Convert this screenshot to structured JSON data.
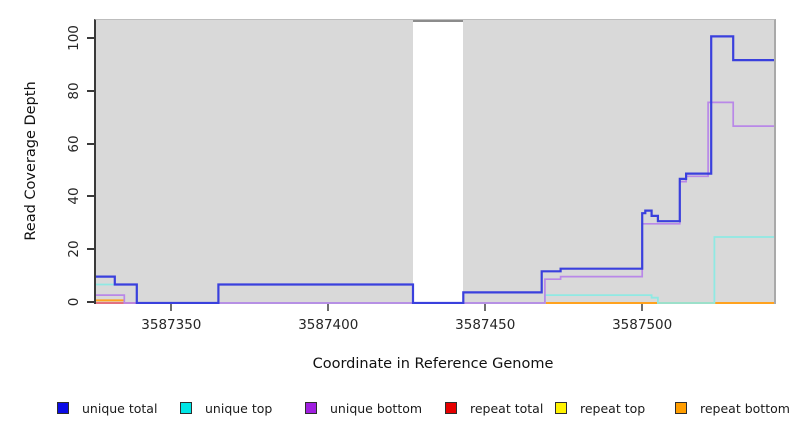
{
  "y_axis": {
    "label": "Read Coverage Depth",
    "ticks": [
      "0",
      "20",
      "40",
      "60",
      "80",
      "100"
    ],
    "tick_values": [
      0,
      20,
      40,
      60,
      80,
      100
    ]
  },
  "x_axis": {
    "label": "Coordinate in Reference Genome",
    "ticks": [
      "3587350",
      "3587400",
      "3587450",
      "3587500"
    ],
    "tick_values": [
      3587350,
      3587400,
      3587450,
      3587500
    ]
  },
  "legend": [
    {
      "label": "unique total",
      "color": "#0b0be6"
    },
    {
      "label": "unique top",
      "color": "#00e5e5"
    },
    {
      "label": "unique bottom",
      "color": "#a01fe0"
    },
    {
      "label": "repeat total",
      "color": "#e60000"
    },
    {
      "label": "repeat top",
      "color": "#fff200"
    },
    {
      "label": "repeat bottom",
      "color": "#ff9d00"
    }
  ],
  "chart_data": {
    "type": "line",
    "subtype": "step-coverage",
    "title": "",
    "xlabel": "Coordinate in Reference Genome",
    "ylabel": "Read Coverage Depth",
    "xlim": [
      3587326,
      3587542
    ],
    "ylim": [
      0,
      107
    ],
    "grid": false,
    "plot_background": "#d9d9d9",
    "masked_region": {
      "x_start": 3587427,
      "x_end": 3587443,
      "color": "#ffffff"
    },
    "series": [
      {
        "name": "repeat top",
        "color": "#ffe82e",
        "line_width": 1.6,
        "segments": [
          [
            [
              3587326,
              0
            ],
            [
              3587542,
              0
            ]
          ]
        ]
      },
      {
        "name": "repeat total",
        "color": "#e0607f",
        "line_width": 1.7,
        "segments": [
          [
            [
              3587326,
              0
            ],
            [
              3587542,
              0
            ]
          ]
        ]
      },
      {
        "name": "repeat bottom",
        "color": "#ffa21f",
        "line_width": 2,
        "segments": [
          [
            [
              3587326,
              1
            ],
            [
              3587335,
              1
            ]
          ],
          [
            [
              3587469,
              0
            ],
            [
              3587542,
              0
            ]
          ]
        ]
      },
      {
        "name": "unique top",
        "color": "#8fe9e3",
        "line_width": 1.8,
        "segments": [
          [
            [
              3587326,
              7
            ],
            [
              3587339,
              0
            ],
            [
              3587469,
              3
            ],
            [
              3587503,
              2
            ],
            [
              3587505,
              0
            ],
            [
              3587523,
              25
            ],
            [
              3587542,
              25
            ]
          ]
        ]
      },
      {
        "name": "unique bottom",
        "color": "#b988e8",
        "line_width": 1.7,
        "segments": [
          [
            [
              3587326,
              3
            ],
            [
              3587335,
              0
            ],
            [
              3587469,
              9
            ],
            [
              3587474,
              10
            ],
            [
              3587500,
              30
            ],
            [
              3587512,
              46
            ],
            [
              3587514,
              48
            ],
            [
              3587521,
              76
            ],
            [
              3587529,
              67
            ],
            [
              3587542,
              67
            ]
          ]
        ]
      },
      {
        "name": "unique total",
        "color": "#3a40dd",
        "line_width": 2.2,
        "segments": [
          [
            [
              3587326,
              10
            ],
            [
              3587332,
              7
            ],
            [
              3587339,
              0
            ],
            [
              3587365,
              7
            ],
            [
              3587427,
              0
            ],
            [
              3587443,
              4
            ],
            [
              3587468,
              12
            ],
            [
              3587474,
              13
            ],
            [
              3587500,
              34
            ],
            [
              3587501,
              35
            ],
            [
              3587503,
              33
            ],
            [
              3587505,
              31
            ],
            [
              3587512,
              47
            ],
            [
              3587514,
              49
            ],
            [
              3587522,
              101
            ],
            [
              3587529,
              92
            ],
            [
              3587542,
              92
            ]
          ]
        ]
      }
    ]
  }
}
